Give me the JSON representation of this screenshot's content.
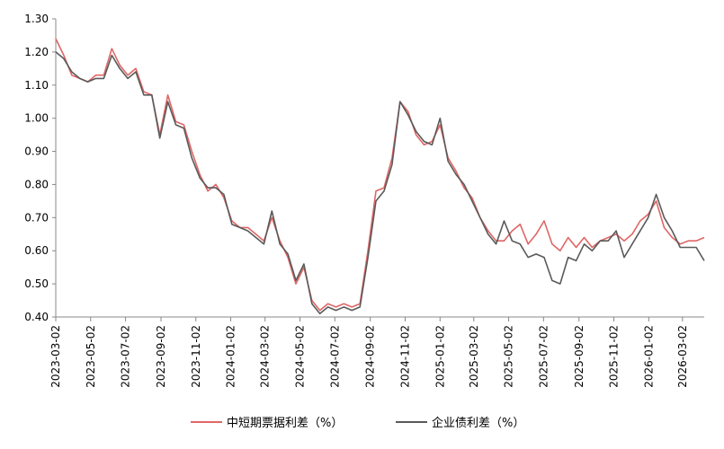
{
  "chart_data": {
    "type": "line",
    "title": "",
    "xlabel": "",
    "ylabel": "",
    "ylim": [
      0.4,
      1.3
    ],
    "y_ticks": [
      "1.30",
      "1.20",
      "1.10",
      "1.00",
      "0.90",
      "0.80",
      "0.70",
      "0.60",
      "0.50",
      "0.40"
    ],
    "x_tick_labels": [
      "2023-03-02",
      "2023-05-02",
      "2023-07-02",
      "2023-09-02",
      "2023-11-02",
      "2024-01-02",
      "2024-03-02",
      "2024-05-02",
      "2024-07-02",
      "2024-09-02",
      "2024-11-02",
      "2025-01-02",
      "2025-03-02",
      "2025-05-02",
      "2025-07-02",
      "2025-09-02",
      "2025-11-02",
      "2026-01-02",
      "2026-03-02"
    ],
    "grid": false,
    "legend_position": "bottom",
    "x": [
      "2023-03-02",
      "2023-03-16",
      "2023-03-30",
      "2023-04-13",
      "2023-04-27",
      "2023-05-11",
      "2023-05-25",
      "2023-06-08",
      "2023-06-22",
      "2023-07-06",
      "2023-07-20",
      "2023-08-03",
      "2023-08-17",
      "2023-08-31",
      "2023-09-14",
      "2023-09-28",
      "2023-10-12",
      "2023-10-26",
      "2023-11-09",
      "2023-11-23",
      "2023-12-07",
      "2023-12-21",
      "2024-01-04",
      "2024-01-18",
      "2024-02-01",
      "2024-02-15",
      "2024-02-29",
      "2024-03-14",
      "2024-03-28",
      "2024-04-11",
      "2024-04-25",
      "2024-05-09",
      "2024-05-23",
      "2024-06-06",
      "2024-06-20",
      "2024-07-04",
      "2024-07-18",
      "2024-08-01",
      "2024-08-15",
      "2024-08-29",
      "2024-09-12",
      "2024-09-26",
      "2024-10-10",
      "2024-10-24",
      "2024-11-07",
      "2024-11-21",
      "2024-12-05",
      "2024-12-19",
      "2025-01-02",
      "2025-01-16",
      "2025-01-30",
      "2025-02-13",
      "2025-02-27",
      "2025-03-13",
      "2025-03-27",
      "2025-04-10",
      "2025-04-24",
      "2025-05-08",
      "2025-05-22",
      "2025-06-05",
      "2025-06-19",
      "2025-07-03",
      "2025-07-17",
      "2025-07-31",
      "2025-08-14",
      "2025-08-28",
      "2025-09-11",
      "2025-09-25",
      "2025-10-09",
      "2025-10-23",
      "2025-11-06",
      "2025-11-20",
      "2025-12-04",
      "2025-12-18",
      "2026-01-01",
      "2026-01-15",
      "2026-01-29",
      "2026-02-12",
      "2026-02-26",
      "2026-03-12",
      "2026-03-26",
      "2026-04-09"
    ],
    "series": [
      {
        "name": "中短期票据利差（%）",
        "color": "#e06666",
        "values": [
          1.24,
          1.19,
          1.13,
          1.12,
          1.11,
          1.13,
          1.13,
          1.21,
          1.16,
          1.13,
          1.15,
          1.08,
          1.07,
          0.95,
          1.07,
          0.99,
          0.98,
          0.9,
          0.83,
          0.78,
          0.8,
          0.76,
          0.69,
          0.67,
          0.67,
          0.65,
          0.63,
          0.7,
          0.63,
          0.58,
          0.5,
          0.55,
          0.45,
          0.42,
          0.44,
          0.43,
          0.44,
          0.43,
          0.44,
          0.6,
          0.78,
          0.79,
          0.88,
          1.05,
          1.02,
          0.95,
          0.92,
          0.93,
          0.98,
          0.88,
          0.84,
          0.79,
          0.76,
          0.7,
          0.66,
          0.63,
          0.63,
          0.66,
          0.68,
          0.62,
          0.65,
          0.69,
          0.62,
          0.6,
          0.64,
          0.61,
          0.64,
          0.61,
          0.63,
          0.64,
          0.65,
          0.63,
          0.65,
          0.69,
          0.71,
          0.75,
          0.67,
          0.64,
          0.62,
          0.63,
          0.63,
          0.64
        ]
      },
      {
        "name": "企业债利差（%）",
        "color": "#5a5a5a",
        "values": [
          1.2,
          1.18,
          1.14,
          1.12,
          1.11,
          1.12,
          1.12,
          1.19,
          1.15,
          1.12,
          1.14,
          1.07,
          1.07,
          0.94,
          1.05,
          0.98,
          0.97,
          0.88,
          0.82,
          0.79,
          0.79,
          0.77,
          0.68,
          0.67,
          0.66,
          0.64,
          0.62,
          0.72,
          0.62,
          0.59,
          0.51,
          0.56,
          0.44,
          0.41,
          0.43,
          0.42,
          0.43,
          0.42,
          0.43,
          0.58,
          0.75,
          0.78,
          0.86,
          1.05,
          1.01,
          0.96,
          0.93,
          0.92,
          1.0,
          0.87,
          0.83,
          0.8,
          0.75,
          0.7,
          0.65,
          0.62,
          0.69,
          0.63,
          0.62,
          0.58,
          0.59,
          0.58,
          0.51,
          0.5,
          0.58,
          0.57,
          0.62,
          0.6,
          0.63,
          0.63,
          0.66,
          0.58,
          0.62,
          0.66,
          0.7,
          0.77,
          0.7,
          0.66,
          0.61,
          0.61,
          0.61,
          0.57
        ]
      }
    ]
  }
}
